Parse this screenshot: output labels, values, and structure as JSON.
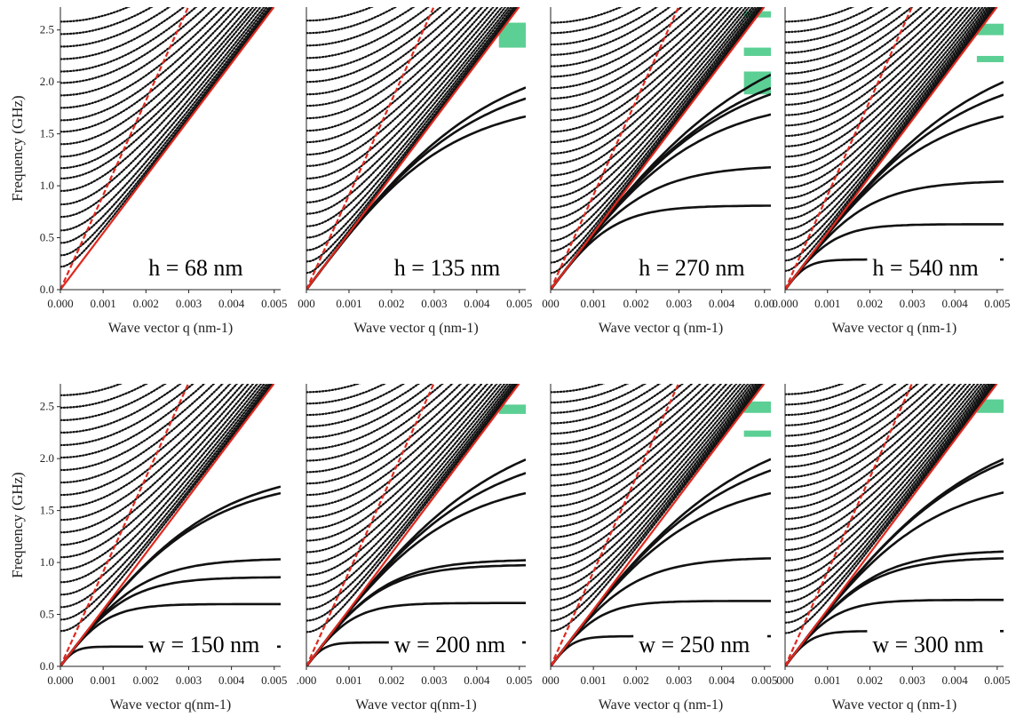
{
  "figure": {
    "y_axis_label": "Frequency (GHz)",
    "colors": {
      "curve": "#111111",
      "sound_line": "#e0281e",
      "gap": "#5ccf94",
      "axis": "#222222"
    }
  },
  "chart_data": [
    {
      "type": "scatter",
      "row": 1,
      "col": 1,
      "annotation": "h = 68 nm",
      "param_symbol": "h",
      "param_value": "68 nm",
      "xlabel": "Wave vector q (nm-1)",
      "x_ticks": [
        "0.000",
        "0.001",
        "0.002",
        "0.003",
        "0.004",
        "0.005"
      ],
      "y_ticks": [
        "0.0",
        "0.5",
        "1.0",
        "1.5",
        "2.0",
        "2.5"
      ],
      "xlim": [
        0,
        0.00515
      ],
      "ylim": [
        0,
        2.72
      ],
      "flat_modes_ghz": [],
      "band_gaps_ghz": [],
      "sound_lines_slope": [
        545,
        910
      ],
      "dispersive_mode_origins_ghz": [
        0.22,
        0.33,
        0.45,
        0.57,
        0.7,
        0.82,
        0.95,
        1.07,
        1.17,
        1.28,
        1.4,
        1.52,
        1.63,
        1.75,
        1.87,
        1.99,
        2.1,
        2.22,
        2.34,
        2.46,
        2.58
      ],
      "flat_mode_start_q": 0.0018
    },
    {
      "type": "scatter",
      "row": 1,
      "col": 2,
      "annotation": "h = 135 nm",
      "param_symbol": "h",
      "param_value": "135 nm",
      "xlabel": "Wave vector q (nm-1)",
      "x_ticks": [
        "000",
        "0.001",
        "0.002",
        "0.003",
        "0.004",
        "0.005"
      ],
      "y_ticks": [],
      "xlim": [
        0,
        0.00515
      ],
      "ylim": [
        0,
        2.72
      ],
      "flat_modes_ghz": [
        1.83,
        2.12,
        2.33
      ],
      "band_gaps_ghz": [
        [
          2.33,
          2.57
        ]
      ],
      "sound_lines_slope": [
        545,
        910
      ],
      "dispersive_mode_origins_ghz": [
        0.16,
        0.27,
        0.38,
        0.5,
        0.61,
        0.73,
        0.84,
        0.96,
        1.07,
        1.19,
        1.3,
        1.42,
        1.53,
        1.65,
        1.77,
        1.88,
        2.0,
        2.11,
        2.23,
        2.35,
        2.47,
        2.59
      ],
      "flat_mode_start_q": 0.0025
    },
    {
      "type": "scatter",
      "row": 1,
      "col": 3,
      "annotation": "h = 270 nm",
      "param_symbol": "h",
      "param_value": "270 nm",
      "xlabel": "Wave vector q (nm-1)",
      "x_ticks": [
        "000",
        "0.001",
        "0.002",
        "0.003",
        "0.004",
        "0.00"
      ],
      "y_ticks": [],
      "xlim": [
        0,
        0.00515
      ],
      "ylim": [
        0,
        2.72
      ],
      "flat_modes_ghz": [
        0.81,
        1.2,
        1.86,
        2.2,
        2.32,
        2.62
      ],
      "band_gaps_ghz": [
        [
          1.88,
          2.1
        ],
        [
          2.25,
          2.33
        ],
        [
          2.62,
          2.68
        ]
      ],
      "sound_lines_slope": [
        545,
        910
      ],
      "dispersive_mode_origins_ghz": [
        0.16,
        0.26,
        0.37,
        0.47,
        0.58,
        0.68,
        0.79,
        0.89,
        1.0,
        1.1,
        1.21,
        1.31,
        1.42,
        1.52,
        1.63,
        1.73,
        1.84,
        1.94,
        2.05,
        2.15,
        2.26,
        2.36,
        2.47,
        2.57
      ],
      "flat_mode_start_q": 0.0012
    },
    {
      "type": "scatter",
      "row": 1,
      "col": 4,
      "annotation": "h = 540 nm",
      "param_symbol": "h",
      "param_value": "540 nm",
      "xlabel": "Wave vector q (nm-1)",
      "x_ticks": [
        "0.000",
        "0.001",
        "0.002",
        "0.003",
        "0.004",
        "0.005"
      ],
      "y_ticks": [],
      "xlim": [
        0,
        0.00515
      ],
      "ylim": [
        0,
        2.72
      ],
      "flat_modes_ghz": [
        0.29,
        0.63,
        1.05,
        1.83,
        2.19,
        2.45
      ],
      "band_gaps_ghz": [
        [
          2.19,
          2.25
        ],
        [
          2.45,
          2.56
        ]
      ],
      "sound_lines_slope": [
        545,
        910
      ],
      "dispersive_mode_origins_ghz": [
        0.18,
        0.28,
        0.38,
        0.48,
        0.58,
        0.68,
        0.78,
        0.88,
        0.98,
        1.08,
        1.18,
        1.28,
        1.38,
        1.48,
        1.58,
        1.68,
        1.78,
        1.88,
        1.98,
        2.08,
        2.18,
        2.28,
        2.38,
        2.48,
        2.58
      ],
      "flat_mode_start_q": 0.001
    },
    {
      "type": "scatter",
      "row": 2,
      "col": 1,
      "annotation": "w = 150 nm",
      "param_symbol": "w",
      "param_value": "150 nm",
      "xlabel": "Wave vector q(nm-1)",
      "x_ticks": [
        "0.000",
        "0.001",
        "0.002",
        "0.003",
        "0.004",
        "0.005"
      ],
      "y_ticks": [
        "0.0",
        "0.5",
        "1.0",
        "1.5",
        "2.0",
        "2.5"
      ],
      "xlim": [
        0,
        0.00515
      ],
      "ylim": [
        0,
        2.72
      ],
      "flat_modes_ghz": [
        0.19,
        0.6,
        0.86,
        1.04,
        1.83,
        1.93
      ],
      "band_gaps_ghz": [],
      "sound_lines_slope": [
        545,
        910
      ],
      "dispersive_mode_origins_ghz": [
        0.34,
        0.45,
        0.57,
        0.69,
        0.81,
        0.93,
        1.05,
        1.17,
        1.29,
        1.41,
        1.53,
        1.65,
        1.77,
        1.89,
        2.01,
        2.13,
        2.25,
        2.37,
        2.49,
        2.61
      ],
      "flat_mode_start_q": 0.001
    },
    {
      "type": "scatter",
      "row": 2,
      "col": 2,
      "annotation": "w = 200 nm",
      "param_symbol": "w",
      "param_value": "200 nm",
      "xlabel": "Wave vector q(nm-1)",
      "x_ticks": [
        ".000",
        "0.001",
        "0.002",
        "0.003",
        "0.004",
        "0.005"
      ],
      "y_ticks": [],
      "xlim": [
        0,
        0.00515
      ],
      "ylim": [
        0,
        2.72
      ],
      "flat_modes_ghz": [
        0.23,
        0.61,
        0.98,
        1.03,
        1.83,
        2.16,
        2.43
      ],
      "band_gaps_ghz": [
        [
          2.43,
          2.52
        ]
      ],
      "sound_lines_slope": [
        545,
        910
      ],
      "dispersive_mode_origins_ghz": [
        0.33,
        0.44,
        0.55,
        0.66,
        0.77,
        0.88,
        0.99,
        1.1,
        1.21,
        1.32,
        1.43,
        1.54,
        1.65,
        1.76,
        1.87,
        1.98,
        2.09,
        2.2,
        2.31,
        2.42,
        2.53,
        2.64
      ],
      "flat_mode_start_q": 0.0011
    },
    {
      "type": "scatter",
      "row": 2,
      "col": 3,
      "annotation": "w = 250 nm",
      "param_symbol": "w",
      "param_value": "250 nm",
      "xlabel": "Wave vector q (nm-1)",
      "x_ticks": [
        "000",
        "0.001",
        "0.002",
        "0.003",
        "0.004",
        "0.005"
      ],
      "y_ticks": [],
      "xlim": [
        0,
        0.00515
      ],
      "ylim": [
        0,
        2.72
      ],
      "flat_modes_ghz": [
        0.29,
        0.63,
        1.05,
        1.83,
        2.21,
        2.44
      ],
      "band_gaps_ghz": [
        [
          2.21,
          2.27
        ],
        [
          2.44,
          2.55
        ]
      ],
      "sound_lines_slope": [
        545,
        910
      ],
      "dispersive_mode_origins_ghz": [
        0.34,
        0.44,
        0.54,
        0.64,
        0.74,
        0.84,
        0.94,
        1.04,
        1.14,
        1.24,
        1.34,
        1.44,
        1.54,
        1.64,
        1.74,
        1.84,
        1.94,
        2.04,
        2.14,
        2.24,
        2.34,
        2.44,
        2.54,
        2.64
      ],
      "flat_mode_start_q": 0.0011
    },
    {
      "type": "scatter",
      "row": 2,
      "col": 4,
      "annotation": "w = 300 nm",
      "param_symbol": "w",
      "param_value": "300 nm",
      "xlabel": "Wave vector q (nm-1)",
      "x_ticks": [
        "000",
        "0.001",
        "0.002",
        "0.003",
        "0.004",
        "0.005"
      ],
      "y_ticks": [],
      "xlim": [
        0,
        0.00515
      ],
      "ylim": [
        0,
        2.72
      ],
      "flat_modes_ghz": [
        0.34,
        0.64,
        1.05,
        1.12,
        1.84,
        2.36,
        2.44
      ],
      "band_gaps_ghz": [
        [
          2.44,
          2.57
        ]
      ],
      "sound_lines_slope": [
        545,
        910
      ],
      "dispersive_mode_origins_ghz": [
        0.32,
        0.42,
        0.52,
        0.62,
        0.72,
        0.82,
        0.92,
        1.02,
        1.12,
        1.22,
        1.32,
        1.42,
        1.52,
        1.62,
        1.72,
        1.82,
        1.92,
        2.02,
        2.12,
        2.22,
        2.32,
        2.42,
        2.52,
        2.62
      ],
      "flat_mode_start_q": 0.0012
    }
  ]
}
